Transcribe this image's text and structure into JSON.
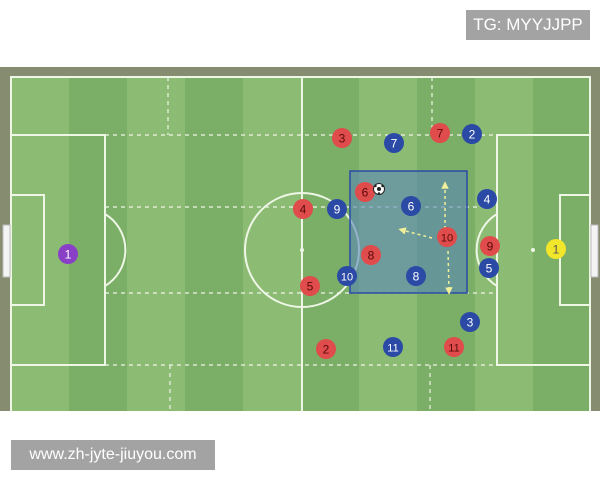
{
  "labels": {
    "top_right": "TG: MYYJJPP",
    "bottom_left": "www.zh-jyte-jiuyou.com"
  },
  "colors": {
    "red_team": "#e04b4b",
    "blue_team": "#2a4aa6",
    "goalkeeper_left": "#8a3fc7",
    "goalkeeper_right": "#f2e62a",
    "highlight_zone": "#5a86b8",
    "arrows": "#f0ef9a",
    "pitch_light": "#8cbb74",
    "pitch_dark": "#7bae66"
  },
  "icons": {
    "ball": "soccer-ball-icon",
    "goal": "goal-net-icon"
  },
  "players": [
    {
      "team": "goalkeeper-left",
      "number": "1"
    },
    {
      "team": "goalkeeper-right",
      "number": "1"
    },
    {
      "team": "red",
      "number": "3"
    },
    {
      "team": "red",
      "number": "7"
    },
    {
      "team": "red",
      "number": "6"
    },
    {
      "team": "red",
      "number": "4"
    },
    {
      "team": "red",
      "number": "10"
    },
    {
      "team": "red",
      "number": "9"
    },
    {
      "team": "red",
      "number": "8"
    },
    {
      "team": "red",
      "number": "5"
    },
    {
      "team": "red",
      "number": "2"
    },
    {
      "team": "red",
      "number": "11"
    },
    {
      "team": "blue",
      "number": "7"
    },
    {
      "team": "blue",
      "number": "2"
    },
    {
      "team": "blue",
      "number": "9"
    },
    {
      "team": "blue",
      "number": "6"
    },
    {
      "team": "blue",
      "number": "4"
    },
    {
      "team": "blue",
      "number": "5"
    },
    {
      "team": "blue",
      "number": "10"
    },
    {
      "team": "blue",
      "number": "8"
    },
    {
      "team": "blue",
      "number": "3"
    },
    {
      "team": "blue",
      "number": "11"
    }
  ]
}
